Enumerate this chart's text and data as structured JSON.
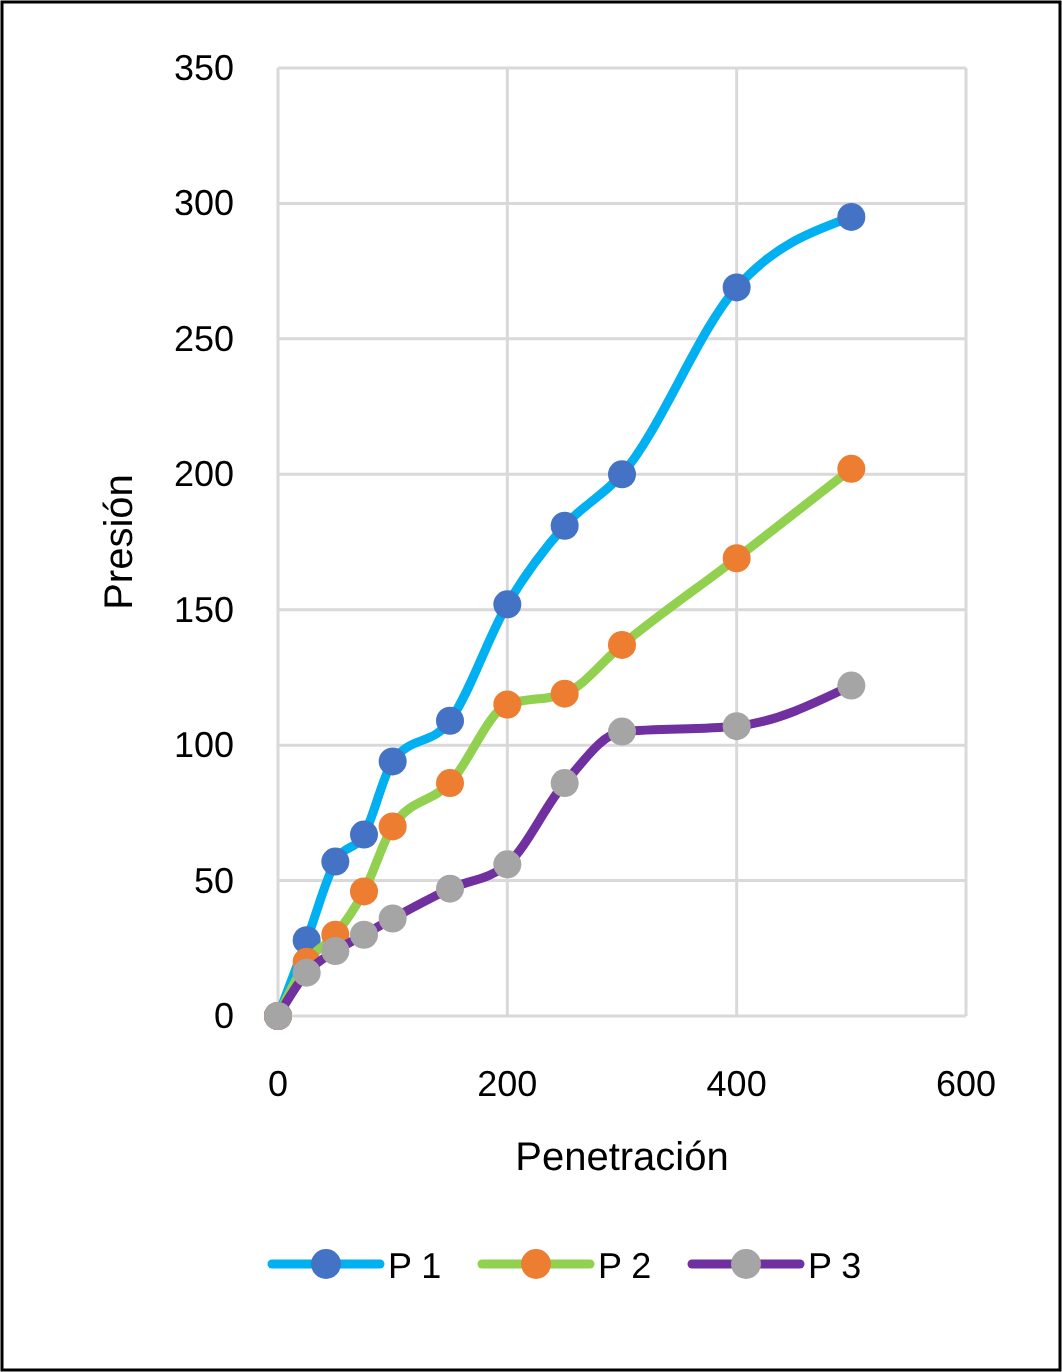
{
  "chart_data": {
    "type": "line",
    "xlabel": "Penetración",
    "ylabel": "Presión",
    "x": [
      0,
      25,
      50,
      75,
      100,
      150,
      200,
      250,
      300,
      400,
      500
    ],
    "series": [
      {
        "name": "P 1",
        "color": "#00b0f0",
        "colors": [
          "#4472c4",
          "#4472c4",
          "#4472c4",
          "#4472c4",
          "#4472c4",
          "#4472c4",
          "#4472c4",
          "#4472c4",
          "#4472c4",
          "#4472c4",
          "#4472c4"
        ],
        "values": [
          0,
          28,
          57,
          67,
          94,
          109,
          152,
          181,
          200,
          269,
          295
        ]
      },
      {
        "name": "P 2",
        "color": "#92d050",
        "colors": [
          "#ed7d31",
          "#ed7d31",
          "#ed7d31",
          "#ed7d31",
          "#ed7d31",
          "#ed7d31",
          "#ed7d31",
          "#ed7d31",
          "#ed7d31",
          "#ed7d31",
          "#ed7d31"
        ],
        "values": [
          0,
          20,
          30,
          46,
          70,
          86,
          115,
          119,
          137,
          169,
          202
        ]
      },
      {
        "name": "P 3",
        "color": "#7030a0",
        "colors": [
          "#a5a5a5",
          "#a5a5a5",
          "#a5a5a5",
          "#a5a5a5",
          "#a5a5a5",
          "#a5a5a5",
          "#a5a5a5",
          "#a5a5a5",
          "#a5a5a5",
          "#a5a5a5",
          "#a5a5a5"
        ],
        "values": [
          0,
          16,
          24,
          30,
          36,
          47,
          56,
          86,
          105,
          107,
          122
        ]
      }
    ],
    "xlim": [
      0,
      600
    ],
    "xticks": [
      0,
      200,
      400,
      600
    ],
    "ylim": [
      0,
      350
    ],
    "yticks": [
      0,
      50,
      100,
      150,
      200,
      250,
      300,
      350
    ],
    "grid": true,
    "legend": "bottom",
    "marker": "circle",
    "line_style": "solid"
  }
}
